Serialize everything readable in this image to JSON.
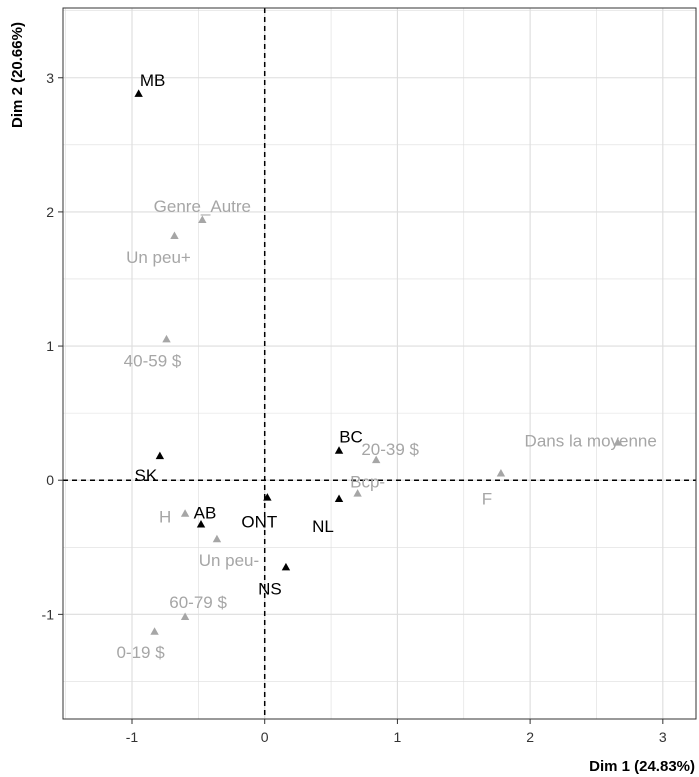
{
  "chart_data": {
    "type": "scatter",
    "title": "",
    "xlabel": "Dim 1 (24.83%)",
    "ylabel": "Dim 2 (20.66%)",
    "xlim": [
      -1.52,
      3.25
    ],
    "ylim": [
      -1.78,
      3.52
    ],
    "x_ticks": [
      -1,
      0,
      1,
      2,
      3
    ],
    "y_ticks": [
      -1,
      0,
      1,
      2,
      3
    ],
    "grid": true,
    "reference_lines": {
      "x": 0,
      "y": 0,
      "style": "dashed"
    },
    "marker": "triangle",
    "colors": {
      "active": "#000000",
      "supplementary": "#a6a6a6",
      "grid": "#dddddd",
      "border": "#333333"
    },
    "series": [
      {
        "group": "active",
        "points": [
          {
            "label": "MB",
            "x": -0.95,
            "y": 2.88
          },
          {
            "label": "BC",
            "x": 0.56,
            "y": 0.22
          },
          {
            "label": "SK",
            "x": -0.79,
            "y": 0.18
          },
          {
            "label": "ONT",
            "x": 0.02,
            "y": -0.13
          },
          {
            "label": "NL",
            "x": 0.56,
            "y": -0.14
          },
          {
            "label": "AB",
            "x": -0.48,
            "y": -0.33
          },
          {
            "label": "NS",
            "x": 0.16,
            "y": -0.65
          }
        ]
      },
      {
        "group": "supplementary",
        "points": [
          {
            "label": "Genre_Autre",
            "x": -0.47,
            "y": 1.94
          },
          {
            "label": "Un peu+",
            "x": -0.68,
            "y": 1.82
          },
          {
            "label": "40-59 $",
            "x": -0.74,
            "y": 1.05
          },
          {
            "label": "Dans la moyenne",
            "x": 2.66,
            "y": 0.28
          },
          {
            "label": "20-39 $",
            "x": 0.84,
            "y": 0.15
          },
          {
            "label": "F",
            "x": 1.78,
            "y": 0.05
          },
          {
            "label": "Bcp-",
            "x": 0.7,
            "y": -0.1
          },
          {
            "label": "H",
            "x": -0.6,
            "y": -0.25
          },
          {
            "label": "Un peu-",
            "x": -0.36,
            "y": -0.44
          },
          {
            "label": "60-79 $",
            "x": -0.6,
            "y": -1.02
          },
          {
            "label": "0-19 $",
            "x": -0.83,
            "y": -1.13
          }
        ]
      }
    ]
  }
}
